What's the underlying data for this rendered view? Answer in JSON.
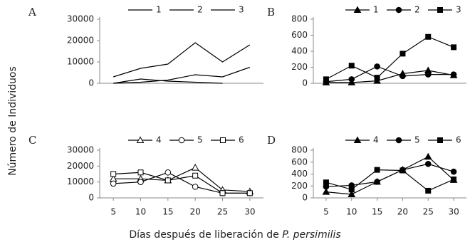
{
  "ylabel": "Número de Individuos",
  "xlabel": "Días después de liberación de",
  "xlabel_italic": "P. persimilis",
  "chart_data": [
    {
      "type": "line",
      "title": "A",
      "x": [
        5,
        10,
        15,
        20,
        25,
        30
      ],
      "xlim": [
        2.5,
        32.5
      ],
      "ylim": [
        0,
        30000
      ],
      "yticks": [
        0,
        10000,
        20000,
        30000
      ],
      "series": [
        {
          "name": "1",
          "color": "#000000",
          "marker": "none",
          "filled": false,
          "values": [
            3000,
            7000,
            9000,
            19000,
            10000,
            18000
          ]
        },
        {
          "name": "2",
          "color": "#000000",
          "marker": "none",
          "filled": false,
          "values": [
            0,
            500,
            1500,
            4000,
            3000,
            7500
          ]
        },
        {
          "name": "3",
          "color": "#000000",
          "marker": "none",
          "filled": false,
          "values": [
            0,
            2000,
            1000,
            500,
            0,
            null
          ]
        }
      ]
    },
    {
      "type": "line",
      "title": "B",
      "x": [
        5,
        10,
        15,
        20,
        25,
        30
      ],
      "xlim": [
        2.5,
        32.5
      ],
      "ylim": [
        0,
        800
      ],
      "yticks": [
        0,
        200,
        400,
        600,
        800
      ],
      "series": [
        {
          "name": "1",
          "color": "#000000",
          "marker": "triangle",
          "filled": true,
          "values": [
            10,
            10,
            30,
            120,
            160,
            100
          ]
        },
        {
          "name": "2",
          "color": "#000000",
          "marker": "circle",
          "filled": true,
          "values": [
            20,
            50,
            210,
            90,
            110,
            110
          ]
        },
        {
          "name": "3",
          "color": "#000000",
          "marker": "square",
          "filled": true,
          "values": [
            50,
            220,
            70,
            370,
            580,
            450
          ]
        }
      ]
    },
    {
      "type": "line",
      "title": "C",
      "x": [
        5,
        10,
        15,
        20,
        25,
        30
      ],
      "xlim": [
        2.5,
        32.5
      ],
      "xticks": [
        5,
        10,
        15,
        20,
        25,
        30
      ],
      "ylim": [
        0,
        30000
      ],
      "yticks": [
        0,
        10000,
        20000,
        30000
      ],
      "series": [
        {
          "name": "4",
          "color": "#000000",
          "marker": "triangle",
          "filled": false,
          "values": [
            12000,
            12000,
            11000,
            19000,
            5000,
            4000
          ]
        },
        {
          "name": "5",
          "color": "#000000",
          "marker": "circle",
          "filled": false,
          "values": [
            9000,
            10000,
            16000,
            7000,
            3000,
            3000
          ]
        },
        {
          "name": "6",
          "color": "#000000",
          "marker": "square",
          "filled": false,
          "values": [
            15000,
            16000,
            11000,
            14000,
            3000,
            3000
          ]
        }
      ]
    },
    {
      "type": "line",
      "title": "D",
      "x": [
        5,
        10,
        15,
        20,
        25,
        30
      ],
      "xlim": [
        2.5,
        32.5
      ],
      "xticks": [
        5,
        10,
        15,
        20,
        25,
        30
      ],
      "ylim": [
        0,
        800
      ],
      "yticks": [
        0,
        200,
        400,
        600,
        800
      ],
      "series": [
        {
          "name": "4",
          "color": "#000000",
          "marker": "triangle",
          "filled": true,
          "values": [
            100,
            60,
            270,
            470,
            690,
            300
          ]
        },
        {
          "name": "5",
          "color": "#000000",
          "marker": "circle",
          "filled": true,
          "values": [
            190,
            210,
            270,
            470,
            570,
            440
          ]
        },
        {
          "name": "6",
          "color": "#000000",
          "marker": "square",
          "filled": true,
          "values": [
            260,
            140,
            470,
            460,
            120,
            310
          ]
        }
      ]
    }
  ]
}
